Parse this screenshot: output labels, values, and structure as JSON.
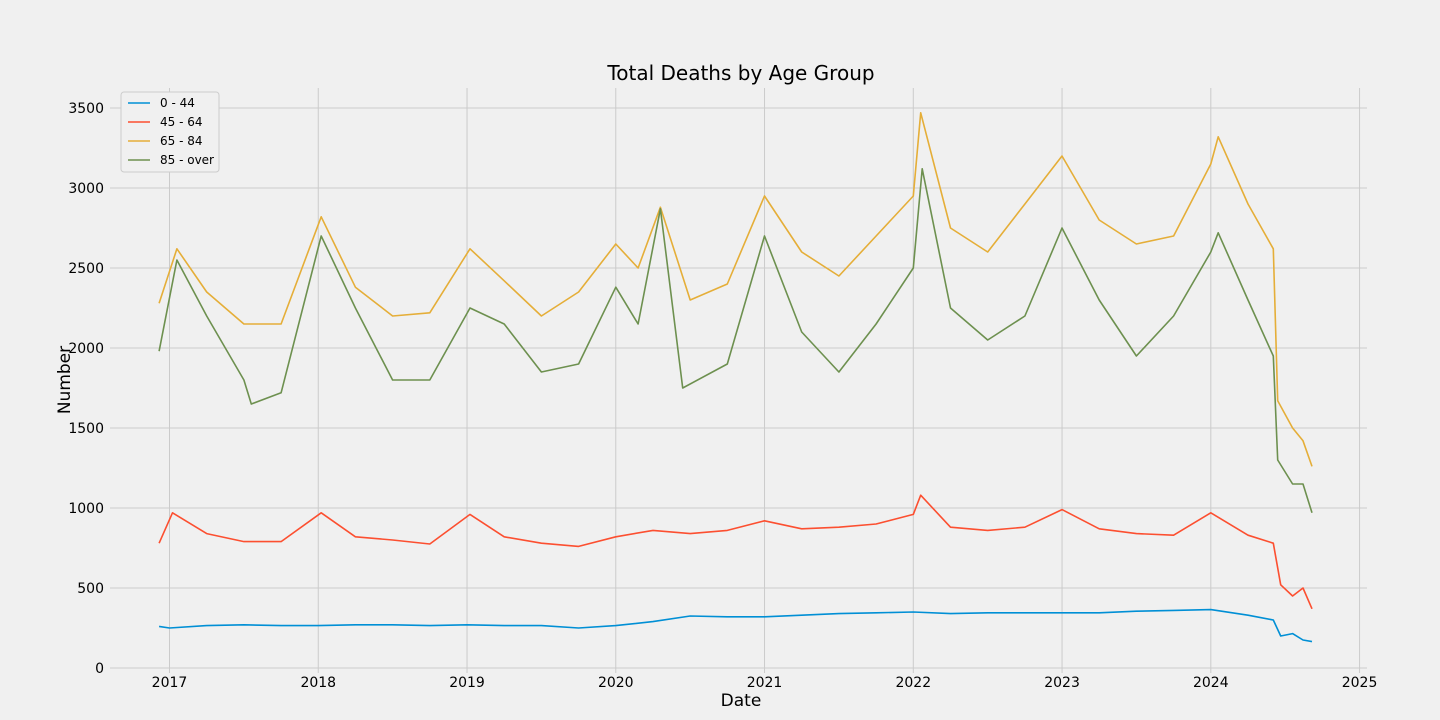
{
  "chart_data": {
    "type": "line",
    "title": "Total Deaths by Age Group",
    "xlabel": "Date",
    "ylabel": "Number",
    "xlim": [
      2016.6,
      2025.05
    ],
    "ylim": [
      0,
      3500
    ],
    "grid": true,
    "legend_position": "top-left",
    "x_ticks": [
      2017,
      2018,
      2019,
      2020,
      2021,
      2022,
      2023,
      2024,
      2025
    ],
    "x_tick_labels": [
      "2017",
      "2018",
      "2019",
      "2020",
      "2021",
      "2022",
      "2023",
      "2024",
      "2025"
    ],
    "y_ticks": [
      0,
      500,
      1000,
      1500,
      2000,
      2500,
      3000,
      3500
    ],
    "y_tick_labels": [
      "0",
      "500",
      "1000",
      "1500",
      "2000",
      "2500",
      "3000",
      "3500"
    ],
    "series": [
      {
        "name": "0 - 44",
        "color": "#008fd5",
        "points": [
          [
            2016.93,
            260
          ],
          [
            2017.0,
            250
          ],
          [
            2017.25,
            265
          ],
          [
            2017.5,
            270
          ],
          [
            2017.75,
            265
          ],
          [
            2018.0,
            265
          ],
          [
            2018.25,
            270
          ],
          [
            2018.5,
            270
          ],
          [
            2018.75,
            265
          ],
          [
            2019.0,
            270
          ],
          [
            2019.25,
            265
          ],
          [
            2019.5,
            265
          ],
          [
            2019.75,
            250
          ],
          [
            2020.0,
            265
          ],
          [
            2020.25,
            290
          ],
          [
            2020.5,
            325
          ],
          [
            2020.75,
            320
          ],
          [
            2021.0,
            320
          ],
          [
            2021.25,
            330
          ],
          [
            2021.5,
            340
          ],
          [
            2021.75,
            345
          ],
          [
            2022.0,
            350
          ],
          [
            2022.25,
            340
          ],
          [
            2022.5,
            345
          ],
          [
            2022.75,
            345
          ],
          [
            2023.0,
            345
          ],
          [
            2023.25,
            345
          ],
          [
            2023.5,
            355
          ],
          [
            2023.75,
            360
          ],
          [
            2024.0,
            365
          ],
          [
            2024.25,
            330
          ],
          [
            2024.42,
            300
          ],
          [
            2024.47,
            200
          ],
          [
            2024.55,
            215
          ],
          [
            2024.62,
            175
          ],
          [
            2024.68,
            165
          ]
        ]
      },
      {
        "name": "45 - 64",
        "color": "#fc4f30",
        "points": [
          [
            2016.93,
            780
          ],
          [
            2017.02,
            970
          ],
          [
            2017.25,
            840
          ],
          [
            2017.5,
            790
          ],
          [
            2017.75,
            790
          ],
          [
            2018.02,
            970
          ],
          [
            2018.25,
            820
          ],
          [
            2018.5,
            800
          ],
          [
            2018.75,
            775
          ],
          [
            2019.02,
            960
          ],
          [
            2019.25,
            820
          ],
          [
            2019.5,
            780
          ],
          [
            2019.75,
            760
          ],
          [
            2020.0,
            820
          ],
          [
            2020.25,
            860
          ],
          [
            2020.5,
            840
          ],
          [
            2020.75,
            860
          ],
          [
            2021.0,
            920
          ],
          [
            2021.25,
            870
          ],
          [
            2021.5,
            880
          ],
          [
            2021.75,
            900
          ],
          [
            2022.0,
            960
          ],
          [
            2022.05,
            1080
          ],
          [
            2022.25,
            880
          ],
          [
            2022.5,
            860
          ],
          [
            2022.75,
            880
          ],
          [
            2023.0,
            990
          ],
          [
            2023.25,
            870
          ],
          [
            2023.5,
            840
          ],
          [
            2023.75,
            830
          ],
          [
            2024.0,
            970
          ],
          [
            2024.25,
            830
          ],
          [
            2024.42,
            780
          ],
          [
            2024.47,
            520
          ],
          [
            2024.55,
            450
          ],
          [
            2024.62,
            500
          ],
          [
            2024.68,
            370
          ]
        ]
      },
      {
        "name": "65 - 84",
        "color": "#e5ae38",
        "points": [
          [
            2016.93,
            2280
          ],
          [
            2017.05,
            2620
          ],
          [
            2017.25,
            2350
          ],
          [
            2017.5,
            2150
          ],
          [
            2017.75,
            2150
          ],
          [
            2018.02,
            2820
          ],
          [
            2018.25,
            2380
          ],
          [
            2018.5,
            2200
          ],
          [
            2018.75,
            2220
          ],
          [
            2019.02,
            2620
          ],
          [
            2019.25,
            2420
          ],
          [
            2019.5,
            2200
          ],
          [
            2019.75,
            2350
          ],
          [
            2020.0,
            2650
          ],
          [
            2020.15,
            2500
          ],
          [
            2020.3,
            2880
          ],
          [
            2020.5,
            2300
          ],
          [
            2020.75,
            2400
          ],
          [
            2021.0,
            2950
          ],
          [
            2021.25,
            2600
          ],
          [
            2021.5,
            2450
          ],
          [
            2021.75,
            2700
          ],
          [
            2022.0,
            2950
          ],
          [
            2022.05,
            3470
          ],
          [
            2022.25,
            2750
          ],
          [
            2022.5,
            2600
          ],
          [
            2022.75,
            2900
          ],
          [
            2023.0,
            3200
          ],
          [
            2023.25,
            2800
          ],
          [
            2023.5,
            2650
          ],
          [
            2023.75,
            2700
          ],
          [
            2024.0,
            3150
          ],
          [
            2024.05,
            3320
          ],
          [
            2024.25,
            2900
          ],
          [
            2024.42,
            2620
          ],
          [
            2024.45,
            1670
          ],
          [
            2024.55,
            1500
          ],
          [
            2024.62,
            1420
          ],
          [
            2024.68,
            1260
          ]
        ]
      },
      {
        "name": "85 - over",
        "color": "#6d904f",
        "points": [
          [
            2016.93,
            1980
          ],
          [
            2017.05,
            2550
          ],
          [
            2017.25,
            2200
          ],
          [
            2017.5,
            1800
          ],
          [
            2017.55,
            1650
          ],
          [
            2017.75,
            1720
          ],
          [
            2018.02,
            2700
          ],
          [
            2018.25,
            2250
          ],
          [
            2018.5,
            1800
          ],
          [
            2018.75,
            1800
          ],
          [
            2019.02,
            2250
          ],
          [
            2019.25,
            2150
          ],
          [
            2019.5,
            1850
          ],
          [
            2019.75,
            1900
          ],
          [
            2020.0,
            2380
          ],
          [
            2020.15,
            2150
          ],
          [
            2020.3,
            2870
          ],
          [
            2020.45,
            1750
          ],
          [
            2020.75,
            1900
          ],
          [
            2021.0,
            2700
          ],
          [
            2021.25,
            2100
          ],
          [
            2021.5,
            1850
          ],
          [
            2021.75,
            2150
          ],
          [
            2022.0,
            2500
          ],
          [
            2022.06,
            3120
          ],
          [
            2022.25,
            2250
          ],
          [
            2022.5,
            2050
          ],
          [
            2022.75,
            2200
          ],
          [
            2023.0,
            2750
          ],
          [
            2023.25,
            2300
          ],
          [
            2023.5,
            1950
          ],
          [
            2023.75,
            2200
          ],
          [
            2024.0,
            2600
          ],
          [
            2024.05,
            2720
          ],
          [
            2024.25,
            2300
          ],
          [
            2024.42,
            1950
          ],
          [
            2024.45,
            1300
          ],
          [
            2024.55,
            1150
          ],
          [
            2024.62,
            1150
          ],
          [
            2024.68,
            970
          ]
        ]
      }
    ]
  }
}
